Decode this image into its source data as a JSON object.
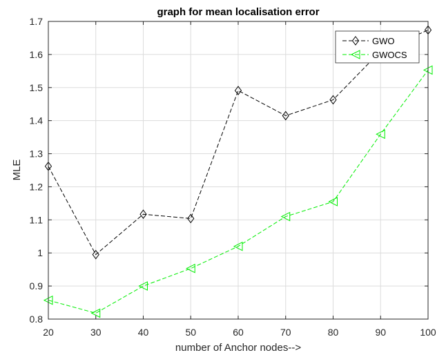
{
  "chart_data": {
    "type": "line",
    "title": "graph for mean localisation error",
    "xlabel": "number of Anchor nodes-->",
    "ylabel": "MLE",
    "x": [
      20,
      30,
      40,
      50,
      60,
      70,
      80,
      90,
      100
    ],
    "xlim": [
      20,
      100
    ],
    "ylim": [
      0.8,
      1.7
    ],
    "xticks": [
      "20",
      "30",
      "40",
      "50",
      "60",
      "70",
      "80",
      "90",
      "100"
    ],
    "yticks": [
      "0.8",
      "0.9",
      "1",
      "1.1",
      "1.2",
      "1.3",
      "1.4",
      "1.5",
      "1.6",
      "1.7"
    ],
    "grid": true,
    "legend_position": "top-right",
    "series": [
      {
        "name": "GWO",
        "color": "#000000",
        "marker": "diamond",
        "line": "dashed",
        "values": [
          1.262,
          0.995,
          1.117,
          1.104,
          1.491,
          1.415,
          1.463,
          1.61,
          1.674
        ]
      },
      {
        "name": "GWOCS",
        "color": "#00ee00",
        "marker": "triangle-left",
        "line": "dashed",
        "values": [
          0.857,
          0.818,
          0.9,
          0.953,
          1.02,
          1.11,
          1.155,
          1.359,
          1.553
        ]
      }
    ]
  }
}
